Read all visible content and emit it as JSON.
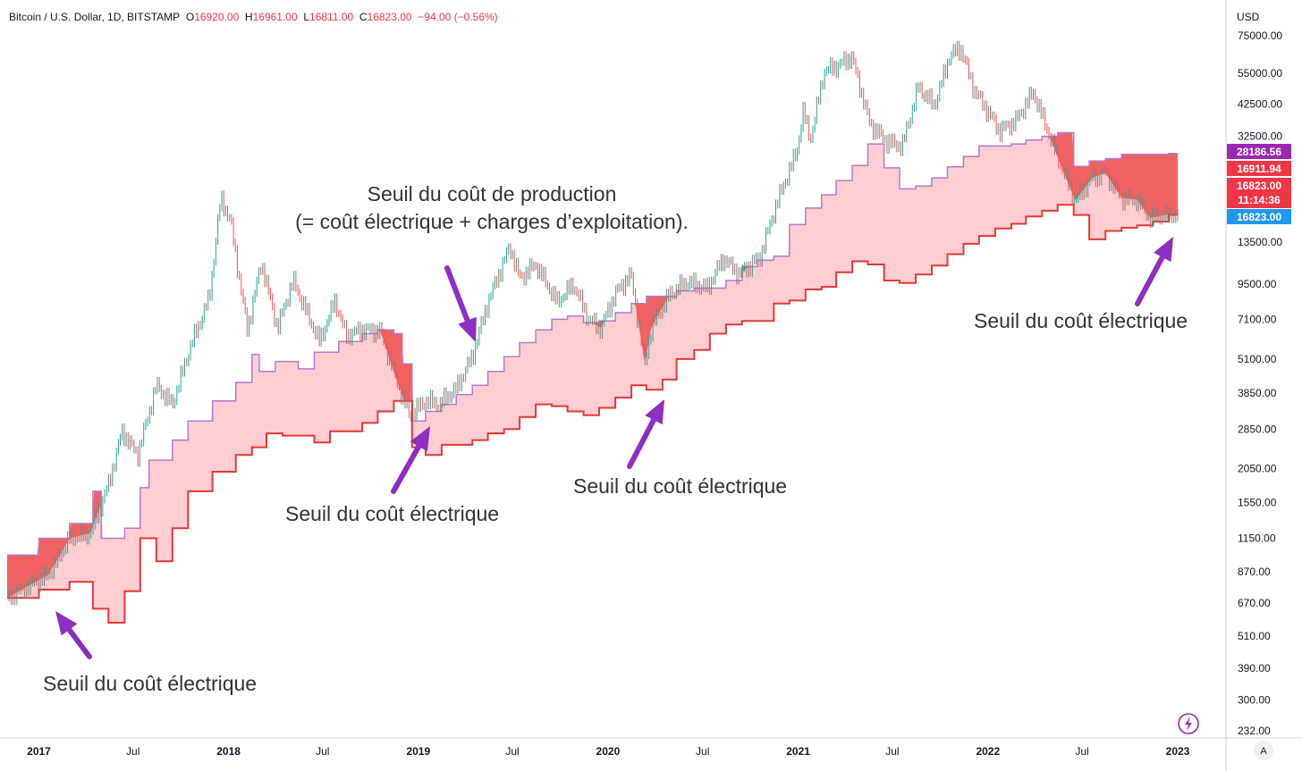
{
  "legend": {
    "symbol": "Bitcoin / U.S. Dollar, 1D, BITSTAMP",
    "o_label": "O",
    "o_value": "16920.00",
    "h_label": "H",
    "h_value": "16961.00",
    "l_label": "L",
    "l_value": "16811.00",
    "c_label": "C",
    "c_value": "16823.00",
    "change": "−94.00 (−0.56%)"
  },
  "annotations": {
    "production_line1": "Seuil du coût de production",
    "production_line2": "(= coût électrique + charges d’exploitation).",
    "elec_2017": "Seuil du coût électrique",
    "elec_2019": "Seuil du coût électrique",
    "elec_2020": "Seuil du coût électrique",
    "elec_2022": "Seuil du coût électrique"
  },
  "colors": {
    "price_up": "#26a69a",
    "price_down": "#ef5350",
    "band_fill": "#ffcdd2",
    "band_above_fill": "#f06262",
    "production_line": "#b07ad6",
    "electric_line": "#e53935",
    "arrow": "#8e2ec2",
    "tag_purple": "#9c27b0",
    "tag_red": "#f23645",
    "tag_blue": "#2196f3"
  },
  "price_tags": [
    {
      "value": 28186.56,
      "label": "28186.56",
      "color": "#9c27b0"
    },
    {
      "value": 16911.94,
      "label": "16911.94",
      "color": "#f23645"
    },
    {
      "value": 16823.0,
      "label": "16823.00",
      "sub": "11:14:36",
      "color": "#f23645"
    },
    {
      "value": 16823.0,
      "label": "16823.00",
      "color": "#2196f3",
      "low": true
    }
  ],
  "chart_data": {
    "type": "line",
    "title": "Bitcoin / U.S. Dollar, 1D, BITSTAMP",
    "currency": "USD",
    "y_scale": "log",
    "ylim": [
      232,
      75000
    ],
    "y_ticks": [
      75000,
      55000,
      42500,
      32500,
      13500,
      9500,
      7100,
      5100,
      3850,
      2850,
      2050,
      1550,
      1150,
      870,
      670,
      510,
      390,
      300,
      232
    ],
    "y_tick_labels": [
      "75000.00",
      "55000.00",
      "42500.00",
      "32500.00",
      "13500.00",
      "9500.00",
      "7100.00",
      "5100.00",
      "3850.00",
      "2850.00",
      "2050.00",
      "1550.00",
      "1150.00",
      "870.00",
      "670.00",
      "510.00",
      "390.00",
      "300.00",
      "232.00"
    ],
    "x_range": [
      "2016-11-01",
      "2023-01-20"
    ],
    "x_ticks": [
      {
        "date": "2017-01-01",
        "label": "2017",
        "bold": true
      },
      {
        "date": "2017-07-01",
        "label": "Jul",
        "bold": false
      },
      {
        "date": "2018-01-01",
        "label": "2018",
        "bold": true
      },
      {
        "date": "2018-07-01",
        "label": "Jul",
        "bold": false
      },
      {
        "date": "2019-01-01",
        "label": "2019",
        "bold": true
      },
      {
        "date": "2019-07-01",
        "label": "Jul",
        "bold": false
      },
      {
        "date": "2020-01-01",
        "label": "2020",
        "bold": true
      },
      {
        "date": "2020-07-01",
        "label": "Jul",
        "bold": false
      },
      {
        "date": "2021-01-01",
        "label": "2021",
        "bold": true
      },
      {
        "date": "2021-07-01",
        "label": "Jul",
        "bold": false
      },
      {
        "date": "2022-01-01",
        "label": "2022",
        "bold": true
      },
      {
        "date": "2022-07-01",
        "label": "Jul",
        "bold": false
      },
      {
        "date": "2023-01-01",
        "label": "2023",
        "bold": true
      }
    ],
    "series": [
      {
        "key": "price",
        "points": [
          [
            "2016-11-01",
            700
          ],
          [
            "2016-12-15",
            780
          ],
          [
            "2017-01-20",
            850
          ],
          [
            "2017-03-01",
            1150
          ],
          [
            "2017-04-10",
            1200
          ],
          [
            "2017-05-15",
            1800
          ],
          [
            "2017-06-10",
            2800
          ],
          [
            "2017-07-10",
            2300
          ],
          [
            "2017-08-15",
            4100
          ],
          [
            "2017-09-15",
            3500
          ],
          [
            "2017-10-20",
            5700
          ],
          [
            "2017-11-25",
            8500
          ],
          [
            "2017-12-17",
            19500
          ],
          [
            "2018-01-05",
            16000
          ],
          [
            "2018-02-06",
            6500
          ],
          [
            "2018-03-05",
            11400
          ],
          [
            "2018-04-05",
            6600
          ],
          [
            "2018-05-05",
            9800
          ],
          [
            "2018-06-25",
            5900
          ],
          [
            "2018-07-25",
            8300
          ],
          [
            "2018-08-15",
            6200
          ],
          [
            "2018-09-15",
            6500
          ],
          [
            "2018-10-20",
            6450
          ],
          [
            "2018-11-20",
            4300
          ],
          [
            "2018-12-15",
            3200
          ],
          [
            "2019-01-15",
            3600
          ],
          [
            "2019-02-10",
            3500
          ],
          [
            "2019-03-15",
            4000
          ],
          [
            "2019-04-15",
            5200
          ],
          [
            "2019-05-15",
            8200
          ],
          [
            "2019-06-26",
            13000
          ],
          [
            "2019-07-15",
            10000
          ],
          [
            "2019-08-15",
            11200
          ],
          [
            "2019-09-25",
            8200
          ],
          [
            "2019-10-26",
            9500
          ],
          [
            "2019-11-25",
            7100
          ],
          [
            "2019-12-18",
            6600
          ],
          [
            "2020-01-15",
            8800
          ],
          [
            "2020-02-14",
            10300
          ],
          [
            "2020-03-12",
            4900
          ],
          [
            "2020-03-25",
            6700
          ],
          [
            "2020-04-30",
            8800
          ],
          [
            "2020-06-01",
            9700
          ],
          [
            "2020-07-10",
            9200
          ],
          [
            "2020-08-10",
            11800
          ],
          [
            "2020-09-10",
            10300
          ],
          [
            "2020-10-20",
            12000
          ],
          [
            "2020-11-20",
            18500
          ],
          [
            "2020-12-30",
            29000
          ],
          [
            "2021-01-10",
            40000
          ],
          [
            "2021-01-25",
            32000
          ],
          [
            "2021-02-20",
            56000
          ],
          [
            "2021-03-15",
            58000
          ],
          [
            "2021-04-14",
            63000
          ],
          [
            "2021-05-19",
            36000
          ],
          [
            "2021-06-22",
            31000
          ],
          [
            "2021-07-20",
            30000
          ],
          [
            "2021-08-20",
            49000
          ],
          [
            "2021-09-20",
            42000
          ],
          [
            "2021-10-20",
            64000
          ],
          [
            "2021-11-10",
            67500
          ],
          [
            "2021-12-05",
            48000
          ],
          [
            "2022-01-24",
            34000
          ],
          [
            "2022-02-24",
            37000
          ],
          [
            "2022-03-29",
            47000
          ],
          [
            "2022-05-10",
            29000
          ],
          [
            "2022-06-18",
            19000
          ],
          [
            "2022-07-20",
            23000
          ],
          [
            "2022-08-15",
            24000
          ],
          [
            "2022-09-15",
            19500
          ],
          [
            "2022-10-15",
            19200
          ],
          [
            "2022-11-09",
            16500
          ],
          [
            "2022-12-15",
            17000
          ],
          [
            "2023-01-01",
            16823
          ]
        ]
      },
      {
        "key": "production_cost",
        "points": [
          [
            "2016-11-01",
            1000
          ],
          [
            "2017-01-01",
            1150
          ],
          [
            "2017-03-01",
            1300
          ],
          [
            "2017-04-15",
            1700
          ],
          [
            "2017-05-01",
            1150
          ],
          [
            "2017-06-15",
            1250
          ],
          [
            "2017-07-15",
            1750
          ],
          [
            "2017-08-01",
            2200
          ],
          [
            "2017-09-15",
            2600
          ],
          [
            "2017-10-15",
            3050
          ],
          [
            "2017-12-01",
            3600
          ],
          [
            "2018-01-15",
            4200
          ],
          [
            "2018-02-15",
            5300
          ],
          [
            "2018-03-01",
            4600
          ],
          [
            "2018-04-01",
            5000
          ],
          [
            "2018-05-15",
            4700
          ],
          [
            "2018-06-15",
            5400
          ],
          [
            "2018-08-01",
            5900
          ],
          [
            "2018-09-15",
            6300
          ],
          [
            "2018-10-15",
            6500
          ],
          [
            "2018-11-15",
            6300
          ],
          [
            "2018-12-01",
            4900
          ],
          [
            "2018-12-20",
            3050
          ],
          [
            "2019-01-15",
            3300
          ],
          [
            "2019-02-15",
            3500
          ],
          [
            "2019-03-15",
            3800
          ],
          [
            "2019-04-15",
            4100
          ],
          [
            "2019-05-15",
            4600
          ],
          [
            "2019-06-15",
            5200
          ],
          [
            "2019-07-15",
            5850
          ],
          [
            "2019-08-15",
            6500
          ],
          [
            "2019-09-15",
            7100
          ],
          [
            "2019-10-15",
            7300
          ],
          [
            "2019-11-15",
            6900
          ],
          [
            "2019-12-15",
            7000
          ],
          [
            "2020-01-15",
            7500
          ],
          [
            "2020-02-15",
            8100
          ],
          [
            "2020-03-15",
            8600
          ],
          [
            "2020-05-12",
            9000
          ],
          [
            "2020-06-15",
            9200
          ],
          [
            "2020-08-15",
            9800
          ],
          [
            "2020-09-15",
            11000
          ],
          [
            "2020-10-15",
            11600
          ],
          [
            "2020-11-15",
            12000
          ],
          [
            "2020-12-15",
            15600
          ],
          [
            "2021-01-15",
            17900
          ],
          [
            "2021-02-15",
            20000
          ],
          [
            "2021-03-15",
            22500
          ],
          [
            "2021-04-15",
            25500
          ],
          [
            "2021-05-15",
            30500
          ],
          [
            "2021-06-15",
            25000
          ],
          [
            "2021-07-15",
            21000
          ],
          [
            "2021-08-15",
            21500
          ],
          [
            "2021-09-15",
            23000
          ],
          [
            "2021-10-15",
            25200
          ],
          [
            "2021-11-15",
            27500
          ],
          [
            "2021-12-15",
            30000
          ],
          [
            "2022-02-15",
            30500
          ],
          [
            "2022-03-15",
            31500
          ],
          [
            "2022-04-15",
            32500
          ],
          [
            "2022-05-15",
            33500
          ],
          [
            "2022-06-15",
            25300
          ],
          [
            "2022-07-15",
            26500
          ],
          [
            "2022-08-15",
            27000
          ],
          [
            "2022-09-15",
            28000
          ],
          [
            "2022-12-15",
            28186.56
          ],
          [
            "2023-01-01",
            28186.56
          ]
        ]
      },
      {
        "key": "electric_cost",
        "points": [
          [
            "2016-11-01",
            700
          ],
          [
            "2017-01-01",
            750
          ],
          [
            "2017-03-01",
            800
          ],
          [
            "2017-04-15",
            640
          ],
          [
            "2017-05-15",
            570
          ],
          [
            "2017-06-15",
            740
          ],
          [
            "2017-07-15",
            1150
          ],
          [
            "2017-08-15",
            950
          ],
          [
            "2017-09-15",
            1250
          ],
          [
            "2017-10-15",
            1700
          ],
          [
            "2017-12-01",
            2000
          ],
          [
            "2018-01-15",
            2300
          ],
          [
            "2018-02-15",
            2450
          ],
          [
            "2018-03-15",
            2750
          ],
          [
            "2018-04-15",
            2700
          ],
          [
            "2018-06-15",
            2550
          ],
          [
            "2018-07-15",
            2800
          ],
          [
            "2018-09-15",
            3000
          ],
          [
            "2018-10-15",
            3300
          ],
          [
            "2018-11-15",
            3600
          ],
          [
            "2018-12-20",
            2450
          ],
          [
            "2019-01-15",
            2300
          ],
          [
            "2019-02-15",
            2500
          ],
          [
            "2019-04-15",
            2600
          ],
          [
            "2019-05-15",
            2750
          ],
          [
            "2019-06-15",
            2850
          ],
          [
            "2019-07-15",
            3150
          ],
          [
            "2019-08-15",
            3500
          ],
          [
            "2019-09-15",
            3450
          ],
          [
            "2019-10-15",
            3300
          ],
          [
            "2019-11-15",
            3200
          ],
          [
            "2019-12-15",
            3400
          ],
          [
            "2020-01-15",
            3700
          ],
          [
            "2020-02-15",
            4100
          ],
          [
            "2020-03-15",
            3950
          ],
          [
            "2020-04-15",
            4300
          ],
          [
            "2020-05-12",
            5100
          ],
          [
            "2020-06-15",
            5500
          ],
          [
            "2020-07-15",
            6300
          ],
          [
            "2020-08-15",
            6800
          ],
          [
            "2020-09-15",
            7000
          ],
          [
            "2020-10-15",
            7000
          ],
          [
            "2020-11-15",
            8100
          ],
          [
            "2020-12-15",
            8300
          ],
          [
            "2021-01-15",
            9100
          ],
          [
            "2021-02-15",
            9300
          ],
          [
            "2021-03-15",
            10500
          ],
          [
            "2021-04-15",
            11500
          ],
          [
            "2021-05-15",
            11200
          ],
          [
            "2021-06-15",
            9800
          ],
          [
            "2021-07-15",
            9600
          ],
          [
            "2021-08-15",
            10300
          ],
          [
            "2021-09-15",
            11100
          ],
          [
            "2021-10-15",
            12200
          ],
          [
            "2021-11-15",
            13300
          ],
          [
            "2021-12-15",
            14200
          ],
          [
            "2022-01-15",
            15100
          ],
          [
            "2022-02-15",
            15700
          ],
          [
            "2022-03-15",
            16700
          ],
          [
            "2022-04-15",
            17500
          ],
          [
            "2022-05-15",
            18400
          ],
          [
            "2022-06-15",
            16900
          ],
          [
            "2022-07-15",
            13800
          ],
          [
            "2022-08-15",
            14800
          ],
          [
            "2022-09-15",
            15200
          ],
          [
            "2022-10-15",
            15500
          ],
          [
            "2022-11-15",
            16000
          ],
          [
            "2022-12-15",
            16911.94
          ],
          [
            "2023-01-01",
            16911.94
          ]
        ]
      }
    ]
  }
}
